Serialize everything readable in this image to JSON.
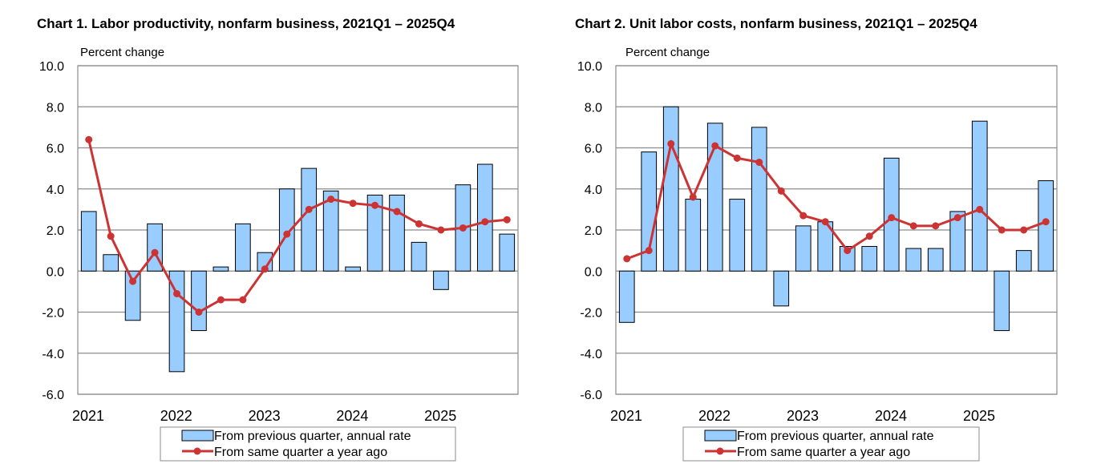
{
  "chart_data": [
    {
      "type": "bar",
      "title": "Chart  1. Labor productivity, nonfarm business, 2021Q1 – 2025Q4",
      "ylabel": "Percent change",
      "xlabel": "",
      "ylim": [
        -6,
        10
      ],
      "y_ticks": [
        "10.0",
        "8.0",
        "6.0",
        "4.0",
        "2.0",
        "0.0",
        "-2.0",
        "-4.0",
        "-6.0"
      ],
      "x_tick_labels": [
        "2021",
        "2022",
        "2023",
        "2024",
        "2025"
      ],
      "categories": [
        "2021Q1",
        "2021Q2",
        "2021Q3",
        "2021Q4",
        "2022Q1",
        "2022Q2",
        "2022Q3",
        "2022Q4",
        "2023Q1",
        "2023Q2",
        "2023Q3",
        "2023Q4",
        "2024Q1",
        "2024Q2",
        "2024Q3",
        "2024Q4",
        "2025Q1",
        "2025Q2",
        "2025Q3",
        "2025Q4"
      ],
      "grid": true,
      "legend_position": "bottom-center",
      "series": [
        {
          "name": "From previous quarter, annual rate",
          "type": "bar",
          "color": "#99ccff",
          "values": [
            2.9,
            0.8,
            -2.4,
            2.3,
            -4.9,
            -2.9,
            0.2,
            2.3,
            0.9,
            4.0,
            5.0,
            3.9,
            0.2,
            3.7,
            3.7,
            1.4,
            -0.9,
            4.2,
            5.2,
            1.8
          ]
        },
        {
          "name": "From same quarter a year ago",
          "type": "line",
          "color": "#cc3333",
          "values": [
            6.4,
            1.7,
            -0.5,
            0.9,
            -1.1,
            -2.0,
            -1.4,
            -1.4,
            0.1,
            1.8,
            3.0,
            3.5,
            3.3,
            3.2,
            2.9,
            2.3,
            2.0,
            2.1,
            2.4,
            2.5
          ]
        }
      ]
    },
    {
      "type": "bar",
      "title": "Chart  2. Unit labor costs, nonfarm business, 2021Q1 – 2025Q4",
      "ylabel": "Percent change",
      "xlabel": "",
      "ylim": [
        -6,
        10
      ],
      "y_ticks": [
        "10.0",
        "8.0",
        "6.0",
        "4.0",
        "2.0",
        "0.0",
        "-2.0",
        "-4.0",
        "-6.0"
      ],
      "x_tick_labels": [
        "2021",
        "2022",
        "2023",
        "2024",
        "2025"
      ],
      "categories": [
        "2021Q1",
        "2021Q2",
        "2021Q3",
        "2021Q4",
        "2022Q1",
        "2022Q2",
        "2022Q3",
        "2022Q4",
        "2023Q1",
        "2023Q2",
        "2023Q3",
        "2023Q4",
        "2024Q1",
        "2024Q2",
        "2024Q3",
        "2024Q4",
        "2025Q1",
        "2025Q2",
        "2025Q3",
        "2025Q4"
      ],
      "grid": true,
      "legend_position": "bottom-center",
      "series": [
        {
          "name": "From previous quarter, annual rate",
          "type": "bar",
          "color": "#99ccff",
          "values": [
            -2.5,
            5.8,
            8.0,
            3.5,
            7.2,
            3.5,
            7.0,
            -1.7,
            2.2,
            2.4,
            1.2,
            1.2,
            5.5,
            1.1,
            1.1,
            2.9,
            7.3,
            -2.9,
            1.0,
            4.4
          ]
        },
        {
          "name": "From same quarter a year ago",
          "type": "line",
          "color": "#cc3333",
          "values": [
            0.6,
            1.0,
            6.2,
            3.6,
            6.1,
            5.5,
            5.3,
            3.9,
            2.7,
            2.4,
            1.0,
            1.7,
            2.6,
            2.2,
            2.2,
            2.6,
            3.0,
            2.0,
            2.0,
            2.4
          ]
        }
      ]
    }
  ]
}
